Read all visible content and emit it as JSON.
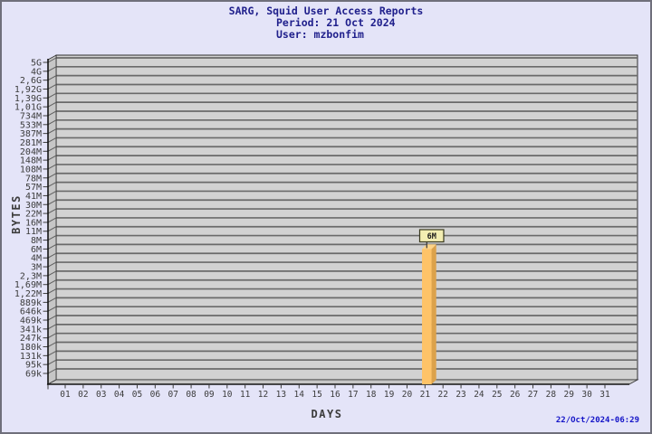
{
  "header": {
    "title": "SARG, Squid User Access Reports",
    "period": "Period: 21 Oct 2024",
    "user": "User: mzbonfim"
  },
  "footer": {
    "timestamp": "22/Oct/2024-06:29"
  },
  "chart_data": {
    "type": "bar",
    "title": "SARG, Squid User Access Reports",
    "subtitle_period": "Period: 21 Oct 2024",
    "subtitle_user": "User: mzbonfim",
    "xlabel": "DAYS",
    "ylabel": "BYTES",
    "x_ticks": [
      "01",
      "02",
      "03",
      "04",
      "05",
      "06",
      "07",
      "08",
      "09",
      "10",
      "11",
      "12",
      "13",
      "14",
      "15",
      "16",
      "17",
      "18",
      "19",
      "20",
      "21",
      "22",
      "23",
      "24",
      "25",
      "26",
      "27",
      "28",
      "29",
      "30",
      "31"
    ],
    "y_ticks": [
      "5G",
      "4G",
      "2,6G",
      "1,92G",
      "1,39G",
      "1,01G",
      "734M",
      "533M",
      "387M",
      "281M",
      "204M",
      "148M",
      "108M",
      "78M",
      "57M",
      "41M",
      "30M",
      "22M",
      "16M",
      "11M",
      "8M",
      "6M",
      "4M",
      "3M",
      "2,3M",
      "1,69M",
      "1,22M",
      "889k",
      "646k",
      "469k",
      "341k",
      "247k",
      "180k",
      "131k",
      "95k",
      "69k"
    ],
    "y_scale": "log",
    "grid": true,
    "bars": [
      {
        "day": "21",
        "label": "6M",
        "y_tick": "6M"
      }
    ],
    "colors": {
      "background": "#E4E4F8",
      "panel": "#D2D2D2",
      "wall": "#C6C6C6",
      "grid": "#6A6A6A",
      "grid_stub": "#5F5F5F",
      "axis": "#141414",
      "axis_text": "#3C3C3C",
      "bar_front": "#FEC368",
      "bar_side": "#DCA24B",
      "bar_top": "#FFD488",
      "label_box_fill": "#F2EDB2",
      "label_box_border": "#3A3A1E",
      "title_text": "#20208C",
      "timestamp_text": "#1414C8"
    }
  }
}
